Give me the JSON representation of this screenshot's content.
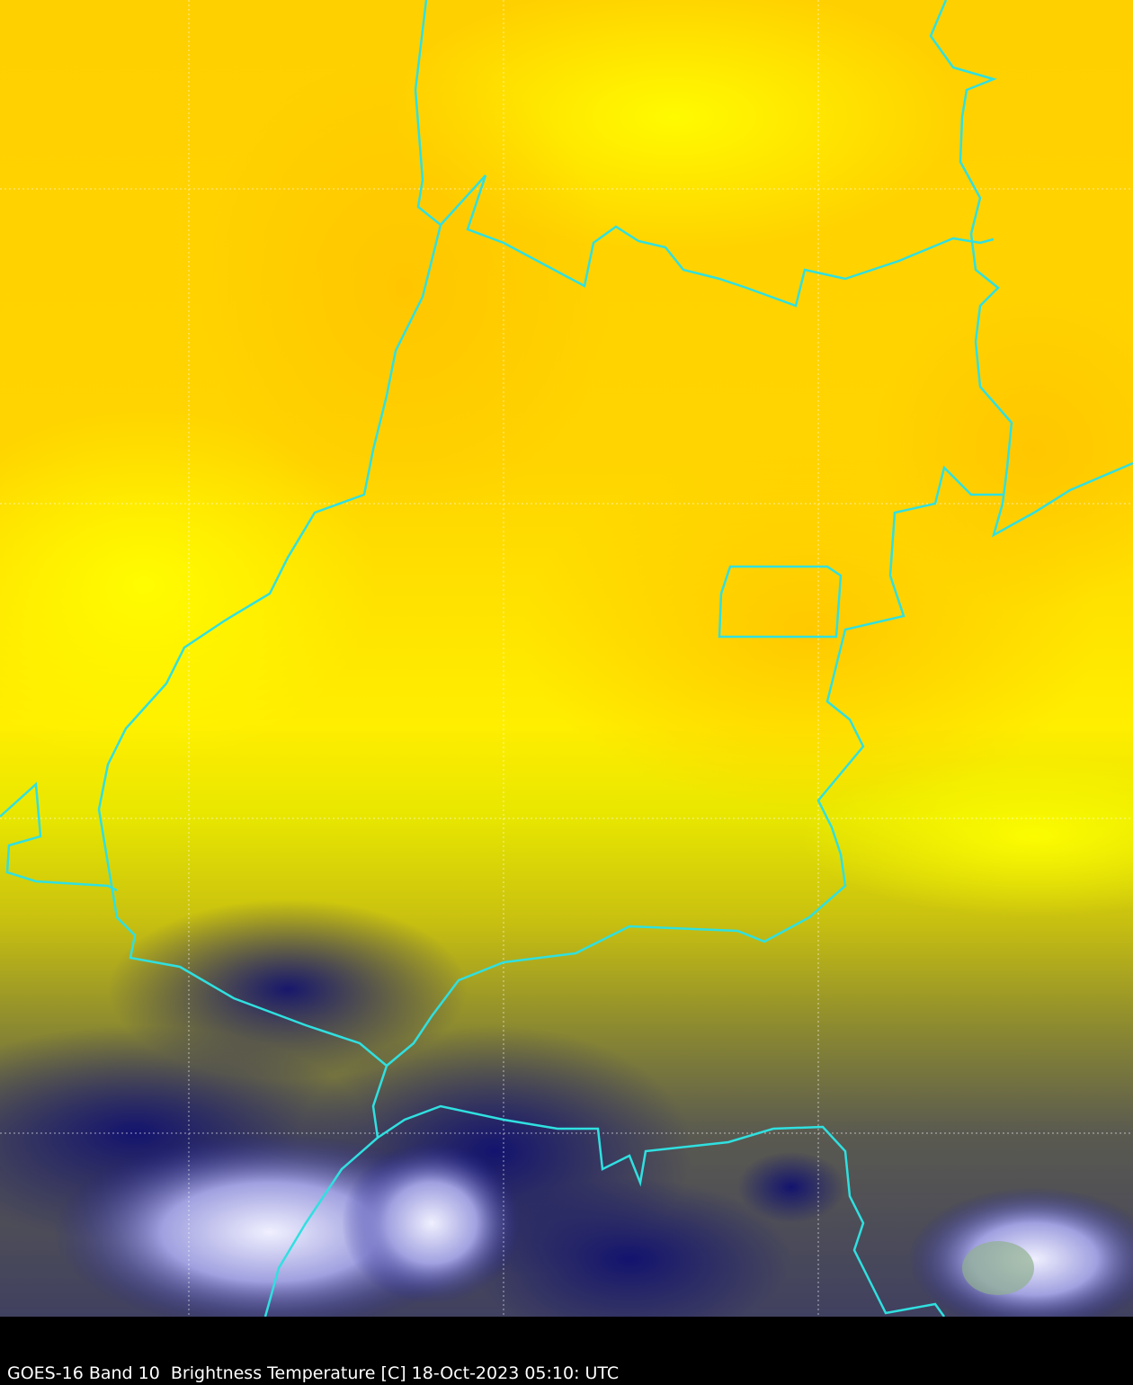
{
  "caption": "GOES-16 Band 10  Brightness Temperature [C] 18-Oct-2023 05:10: UTC"
}
